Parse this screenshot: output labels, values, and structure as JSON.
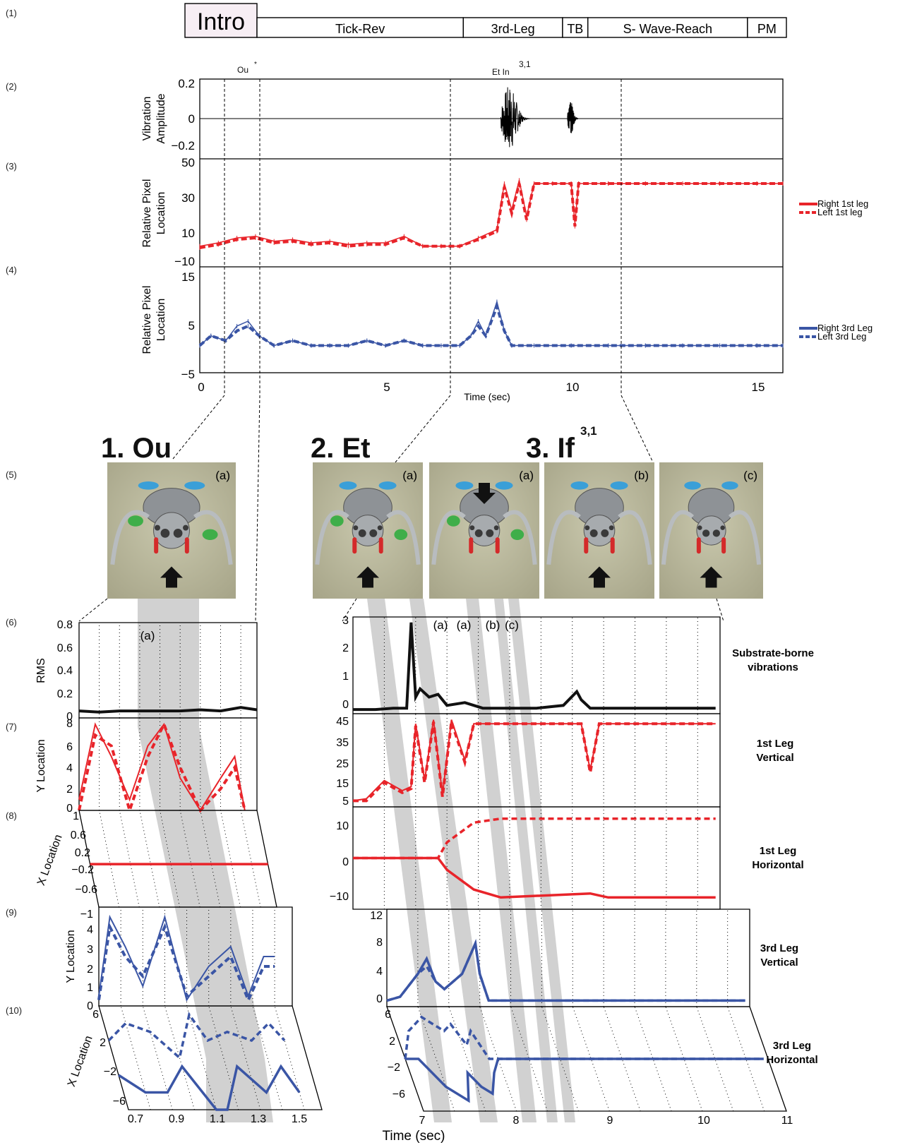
{
  "row_labels": [
    "(1)",
    "(2)",
    "(3)",
    "(4)",
    "(5)",
    "(6)",
    "(7)",
    "(8)",
    "(9)",
    "(10)"
  ],
  "ethogram": {
    "segments": [
      {
        "label": "Intro",
        "start": 0,
        "end": 1.85,
        "emphasis": true
      },
      {
        "label": "Tick-Rev",
        "start": 1.85,
        "end": 7.15
      },
      {
        "label": "3rd-Leg",
        "start": 7.15,
        "end": 9.7
      },
      {
        "label": "TB",
        "start": 9.7,
        "end": 10.35
      },
      {
        "label": "S- Wave-Reach",
        "start": 10.35,
        "end": 14.45
      },
      {
        "label": "PM",
        "start": 14.45,
        "end": 15.45
      }
    ]
  },
  "event_labels": {
    "ou": "Ou",
    "ou_sup": "*",
    "etin": "Et In",
    "etin_sup": "3,1"
  },
  "top_axes": {
    "x_label": "Time (sec)",
    "x_ticks": [
      "0",
      "5",
      "10",
      "15"
    ],
    "vib_label_1": "Vibration",
    "vib_label_2": "Amplitude",
    "vib_ticks": [
      "0.2",
      "0",
      "−0.2"
    ],
    "px1_label_1": "Relative Pixel",
    "px1_label_2": "Location",
    "px1_ticks": [
      "50",
      "30",
      "10",
      "−10"
    ],
    "px3_label_1": "Relative Pixel",
    "px3_label_2": "Location",
    "px3_ticks": [
      "15",
      "5",
      "−5"
    ]
  },
  "legends": {
    "first": [
      "Right 1st leg",
      "Left 1st leg"
    ],
    "third": [
      "Right 3rd Leg",
      "Left 3rd Leg"
    ]
  },
  "colors": {
    "red": "#e8242a",
    "blue": "#3a55a5",
    "shade": "#c9c9c9"
  },
  "section_titles": {
    "ou": "1. Ou",
    "et": "2. Et",
    "if_main": "3. If",
    "if_sup": "3,1"
  },
  "photo_tags": [
    "(a)",
    "(a)",
    "(a)",
    "(b)",
    "(c)"
  ],
  "photo_icons": [
    "spider-illustration-ou",
    "spider-illustration-et",
    "spider-illustration-if-a",
    "spider-illustration-if-b",
    "spider-illustration-if-c"
  ],
  "left_panels": {
    "rms_label": "RMS",
    "rms_ticks": [
      "0.8",
      "0.6",
      "0.4",
      "0.2",
      "0"
    ],
    "shade_tag": "(a)",
    "y1_label": "Y Location",
    "y1_ticks": [
      "8",
      "6",
      "4",
      "2",
      "0"
    ],
    "x1_label": "X Location",
    "x1_ticks": [
      "1",
      "0.6",
      "0.2",
      "−0.2",
      "−0.6"
    ],
    "y3_label": "Y Location",
    "y3_ticks": [
      "−1",
      "4",
      "3",
      "2",
      "1",
      "0"
    ],
    "x3_label": "X Location",
    "x3_ticks": [
      "6",
      "2",
      "−2",
      "−6"
    ],
    "x_ticks": [
      "0.7",
      "0.9",
      "1.1",
      "1.3",
      "1.5"
    ]
  },
  "right_panels": {
    "shade_tags": [
      "(a)",
      "(a)",
      "(b)",
      "(c)"
    ],
    "vib_ticks": [
      "3",
      "2",
      "1",
      "0"
    ],
    "v1_ticks": [
      "45",
      "35",
      "25",
      "15",
      "5"
    ],
    "h1_ticks": [
      "10",
      "0",
      "−10"
    ],
    "v3_ticks": [
      "12",
      "8",
      "4",
      "0"
    ],
    "h3_ticks": [
      "6",
      "2",
      "−2",
      "−6"
    ],
    "x_ticks": [
      "7",
      "8",
      "9",
      "10",
      "11"
    ],
    "x_label": "Time (sec)",
    "titles": [
      [
        "Substrate-borne",
        "vibrations"
      ],
      [
        "1st Leg",
        "Vertical"
      ],
      [
        "1st Leg",
        "Horizontal"
      ],
      [
        "3rd Leg",
        "Vertical"
      ],
      [
        "3rd Leg",
        "Horizontal"
      ]
    ]
  },
  "chart_data": [
    {
      "type": "line",
      "title": "",
      "xlabel": "Time (sec)",
      "ylabel": "Vibration Amplitude",
      "xlim": [
        0,
        15.7
      ],
      "ylim": [
        -0.3,
        0.25
      ],
      "series": [
        {
          "name": "Vibration Amplitude",
          "bursts": [
            {
              "x": [
                8.1,
                8.9
              ],
              "peak": 0.2
            },
            {
              "x": [
                9.9,
                10.2
              ],
              "peak": 0.1
            }
          ]
        }
      ]
    },
    {
      "type": "line",
      "xlabel": "Time (sec)",
      "ylabel": "Relative Pixel Location",
      "xlim": [
        0,
        15.7
      ],
      "ylim": [
        -10,
        50
      ],
      "series": [
        {
          "name": "Right 1st leg",
          "x": [
            0,
            0.5,
            1,
            1.5,
            2,
            2.5,
            3,
            3.5,
            4,
            4.5,
            5,
            5.5,
            6,
            6.5,
            7,
            7.5,
            8,
            8.2,
            8.4,
            8.6,
            8.8,
            9,
            9.5,
            10,
            10.1,
            10.2,
            11,
            12,
            13,
            14,
            15,
            15.7
          ],
          "y": [
            0,
            2,
            5,
            6,
            3,
            4,
            2,
            3,
            1,
            2,
            2,
            6,
            0,
            0,
            0,
            5,
            10,
            38,
            22,
            40,
            18,
            38,
            38,
            38,
            14,
            38,
            38,
            38,
            38,
            38,
            38,
            38
          ]
        },
        {
          "name": "Left 1st leg",
          "x": [
            0,
            0.5,
            1,
            1.5,
            2,
            2.5,
            3,
            3.5,
            4,
            4.5,
            5,
            5.5,
            6,
            6.5,
            7,
            7.5,
            8,
            8.2,
            8.4,
            8.6,
            8.8,
            9,
            9.5,
            10,
            10.1,
            10.2,
            11,
            12,
            13,
            14,
            15,
            15.7
          ],
          "y": [
            -1,
            1,
            4,
            5,
            2,
            3,
            1,
            2,
            0,
            1,
            1,
            5,
            0,
            0,
            0,
            4,
            9,
            36,
            20,
            38,
            16,
            38,
            38,
            38,
            12,
            38,
            38,
            38,
            38,
            38,
            38,
            38
          ]
        }
      ]
    },
    {
      "type": "line",
      "xlabel": "Time (sec)",
      "ylabel": "Relative Pixel Location",
      "xlim": [
        0,
        15.7
      ],
      "ylim": [
        -5,
        15
      ],
      "series": [
        {
          "name": "Right 3rd Leg",
          "x": [
            0,
            0.3,
            0.7,
            1,
            1.3,
            1.6,
            2,
            2.5,
            3,
            3.5,
            4,
            4.5,
            5,
            5.5,
            6,
            6.5,
            7,
            7.3,
            7.5,
            7.7,
            8,
            8.2,
            8.4,
            9,
            10,
            11,
            12,
            13,
            14,
            15,
            15.7
          ],
          "y": [
            0,
            2,
            1,
            4,
            5,
            2,
            0,
            1,
            0,
            0,
            0,
            1,
            0,
            1,
            0,
            0,
            0,
            2,
            5,
            2,
            9,
            3,
            0,
            0,
            0,
            0,
            0,
            0,
            0,
            0,
            0
          ]
        },
        {
          "name": "Left 3rd Leg",
          "x": [
            0,
            0.3,
            0.7,
            1,
            1.3,
            1.6,
            2,
            2.5,
            3,
            3.5,
            4,
            4.5,
            5,
            5.5,
            6,
            6.5,
            7,
            7.3,
            7.5,
            7.7,
            8,
            8.2,
            8.4,
            9,
            10,
            11,
            12,
            13,
            14,
            15,
            15.7
          ],
          "y": [
            0,
            2,
            1,
            3,
            4,
            2,
            0,
            1,
            0,
            0,
            0,
            1,
            0,
            1,
            0,
            0,
            0,
            2,
            4,
            2,
            8,
            3,
            0,
            0,
            0,
            0,
            0,
            0,
            0,
            0,
            0
          ]
        }
      ]
    },
    {
      "type": "line",
      "ylabel": "RMS",
      "xlim": [
        0.7,
        1.58
      ],
      "ylim": [
        0,
        0.8
      ],
      "series": [
        {
          "name": "RMS",
          "x": [
            0.7,
            0.8,
            0.9,
            1.0,
            1.1,
            1.2,
            1.3,
            1.4,
            1.5,
            1.58
          ],
          "y": [
            0.06,
            0.05,
            0.06,
            0.06,
            0.06,
            0.06,
            0.07,
            0.06,
            0.09,
            0.07
          ]
        }
      ]
    },
    {
      "type": "line",
      "ylabel": "Y Location",
      "xlim": [
        0.7,
        1.58
      ],
      "ylim": [
        0,
        8.5
      ],
      "series": [
        {
          "name": "Right 1st leg",
          "x": [
            0.7,
            0.78,
            0.86,
            0.95,
            1.04,
            1.12,
            1.2,
            1.3,
            1.4,
            1.47,
            1.52
          ],
          "y": [
            1,
            8,
            5,
            1,
            6,
            8,
            3,
            0,
            3,
            5,
            0
          ]
        },
        {
          "name": "Left 1st leg",
          "x": [
            0.7,
            0.78,
            0.86,
            0.95,
            1.04,
            1.12,
            1.2,
            1.3,
            1.4,
            1.47,
            1.52
          ],
          "y": [
            0,
            7,
            6,
            0,
            5,
            8,
            4,
            0,
            2,
            4,
            0
          ]
        }
      ]
    },
    {
      "type": "line",
      "ylabel": "X Location",
      "xlim": [
        0.7,
        1.58
      ],
      "ylim": [
        -0.8,
        1
      ],
      "series": [
        {
          "name": "Right 1st leg",
          "x": [
            0.7,
            1.58
          ],
          "y": [
            0,
            0
          ]
        }
      ]
    },
    {
      "type": "line",
      "ylabel": "Y Location",
      "xlim": [
        0.7,
        1.58
      ],
      "ylim": [
        0,
        5
      ],
      "series": [
        {
          "name": "Right 3rd Leg",
          "x": [
            0.7,
            0.75,
            0.82,
            0.9,
            1.0,
            1.1,
            1.2,
            1.3,
            1.38,
            1.45,
            1.5
          ],
          "y": [
            0.5,
            4.5,
            3,
            1,
            4.5,
            0.3,
            2,
            3,
            0.5,
            2.5,
            2.5
          ]
        },
        {
          "name": "Left 3rd Leg",
          "x": [
            0.7,
            0.75,
            0.82,
            0.9,
            1.0,
            1.1,
            1.2,
            1.3,
            1.38,
            1.45,
            1.5
          ],
          "y": [
            0.3,
            4,
            2.5,
            1.5,
            4,
            0.5,
            1.5,
            2.5,
            0.3,
            2,
            2
          ]
        }
      ]
    },
    {
      "type": "line",
      "ylabel": "X Location",
      "xlim": [
        0.7,
        1.58
      ],
      "ylim": [
        -6,
        6
      ],
      "series": [
        {
          "name": "Right 3rd Leg",
          "x": [
            0.7,
            0.8,
            0.9,
            1.0,
            1.1,
            1.15,
            1.25,
            1.35,
            1.45,
            1.5
          ],
          "y": [
            -2,
            -4,
            -4,
            -1,
            -6,
            -6,
            -1,
            -4,
            -1,
            -4
          ]
        },
        {
          "name": "Left 3rd Leg",
          "x": [
            0.7,
            0.8,
            0.9,
            1.0,
            1.1,
            1.15,
            1.25,
            1.35,
            1.45,
            1.5
          ],
          "y": [
            2,
            4,
            3,
            0,
            5,
            2,
            3,
            2,
            4,
            2
          ]
        }
      ]
    },
    {
      "type": "line",
      "title": "Substrate-borne vibrations",
      "xlim": [
        6.95,
        11.05
      ],
      "ylim": [
        0,
        3.3
      ],
      "series": [
        {
          "name": "RMS",
          "x": [
            6.95,
            7.2,
            7.4,
            7.55,
            7.6,
            7.65,
            7.7,
            7.8,
            7.9,
            8.0,
            8.2,
            8.4,
            9.0,
            9.3,
            9.45,
            9.5,
            9.6,
            10.0,
            10.5,
            11.0
          ],
          "y": [
            0.05,
            0.05,
            0.1,
            0.1,
            3.2,
            0.5,
            0.8,
            0.5,
            0.6,
            0.2,
            0.3,
            0.1,
            0.1,
            0.2,
            0.7,
            0.4,
            0.1,
            0.1,
            0.1,
            0.1
          ]
        }
      ]
    },
    {
      "type": "line",
      "title": "1st Leg Vertical",
      "xlim": [
        6.95,
        11.05
      ],
      "ylim": [
        3,
        47
      ],
      "series": [
        {
          "name": "Right 1st leg",
          "x": [
            6.95,
            7.1,
            7.3,
            7.5,
            7.6,
            7.65,
            7.75,
            7.85,
            7.95,
            8.05,
            8.2,
            8.3,
            9.5,
            9.6,
            9.7,
            11.0
          ],
          "y": [
            5,
            6,
            15,
            10,
            12,
            43,
            15,
            45,
            8,
            45,
            25,
            43,
            43,
            20,
            43,
            43
          ]
        },
        {
          "name": "Left 1st leg",
          "x": [
            6.95,
            7.1,
            7.3,
            7.5,
            7.6,
            7.65,
            7.75,
            7.85,
            7.95,
            8.05,
            8.2,
            8.3,
            9.5,
            9.6,
            9.7,
            11.0
          ],
          "y": [
            5,
            5,
            14,
            9,
            11,
            42,
            14,
            44,
            7,
            44,
            24,
            43,
            43,
            19,
            43,
            43
          ]
        }
      ]
    },
    {
      "type": "line",
      "title": "1st Leg Horizontal",
      "xlim": [
        6.95,
        11.05
      ],
      "ylim": [
        -12,
        12
      ],
      "series": [
        {
          "name": "Right 1st leg",
          "x": [
            6.95,
            7.9,
            8.0,
            8.3,
            8.6,
            9.6,
            9.8,
            11.0
          ],
          "y": [
            0,
            0,
            -3,
            -8,
            -10,
            -9,
            -10,
            -10
          ]
        },
        {
          "name": "Left 1st leg",
          "x": [
            6.95,
            7.9,
            8.0,
            8.3,
            8.6,
            9.6,
            9.8,
            11.0
          ],
          "y": [
            0,
            0,
            4,
            9,
            10,
            10,
            10,
            10
          ]
        }
      ]
    },
    {
      "type": "line",
      "title": "3rd Leg Vertical",
      "xlim": [
        6.95,
        11.05
      ],
      "ylim": [
        0,
        12
      ],
      "series": [
        {
          "name": "Right 3rd Leg",
          "x": [
            6.95,
            7.1,
            7.3,
            7.4,
            7.5,
            7.6,
            7.8,
            7.95,
            8.0,
            8.1,
            8.5,
            11.0
          ],
          "y": [
            0.5,
            1,
            4,
            6,
            3,
            2,
            4,
            8,
            4,
            0.5,
            0.5,
            0.5
          ]
        },
        {
          "name": "Left 3rd Leg",
          "x": [
            6.95,
            7.1,
            7.3,
            7.4,
            7.5,
            7.6,
            7.8,
            7.95,
            8.0,
            8.1,
            8.5,
            11.0
          ],
          "y": [
            0.5,
            1,
            4,
            5,
            3,
            2,
            4,
            8,
            4,
            0.5,
            0.5,
            0.5
          ]
        }
      ]
    },
    {
      "type": "line",
      "title": "3rd Leg Horizontal",
      "xlim": [
        6.95,
        11.05
      ],
      "ylim": [
        -7,
        7
      ],
      "series": [
        {
          "name": "Right 3rd Leg",
          "x": [
            6.95,
            7.1,
            7.3,
            7.5,
            7.6,
            7.7,
            7.8,
            7.9,
            8.0,
            11.0
          ],
          "y": [
            0,
            0,
            -4,
            -6,
            -2,
            -4,
            -5,
            -2,
            0,
            0
          ]
        },
        {
          "name": "Left 3rd Leg",
          "x": [
            6.95,
            7.1,
            7.3,
            7.5,
            7.6,
            7.7,
            7.8,
            7.9,
            8.0,
            11.0
          ],
          "y": [
            0,
            4,
            6,
            4,
            5,
            2,
            4,
            0,
            0,
            0
          ]
        }
      ]
    }
  ]
}
